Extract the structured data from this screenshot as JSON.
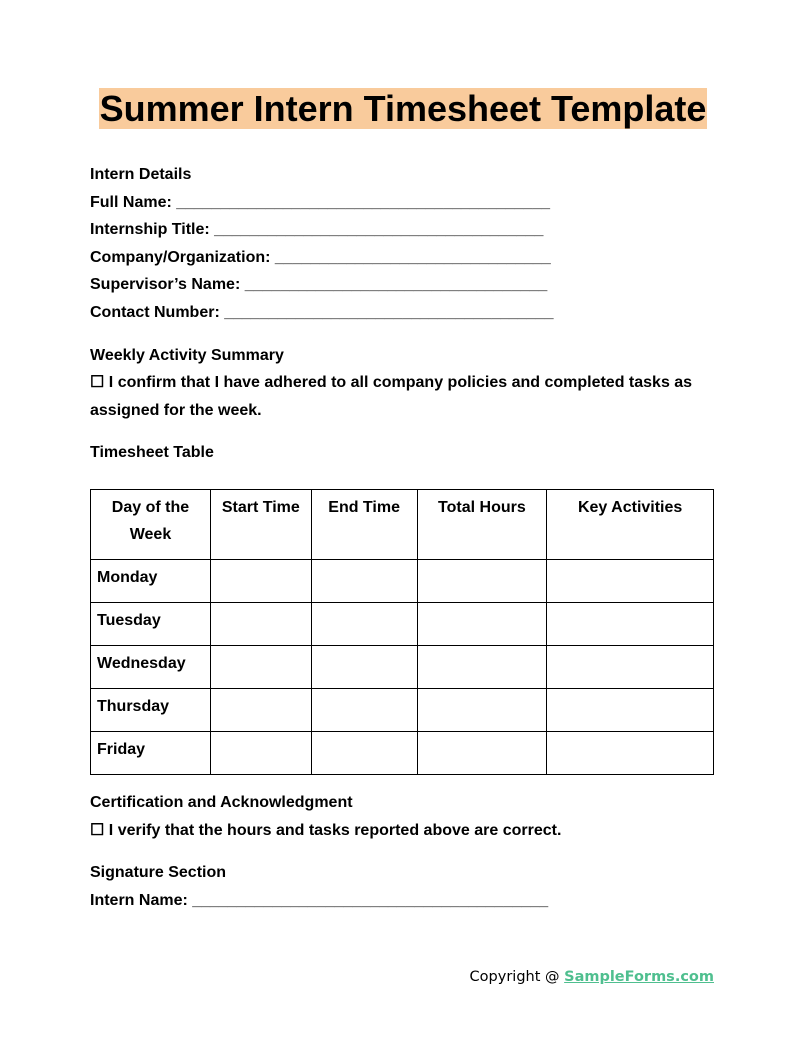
{
  "title": "Summer Intern Timesheet Template",
  "intern_details": {
    "heading": "Intern Details",
    "fields": [
      {
        "label": "Full Name:",
        "blank": "__________________________________________"
      },
      {
        "label": "Internship Title:",
        "blank": "_____________________________________"
      },
      {
        "label": "Company/Organization:",
        "blank": "_______________________________"
      },
      {
        "label": "Supervisor’s Name:",
        "blank": "__________________________________"
      },
      {
        "label": "Contact Number:",
        "blank": "_____________________________________"
      }
    ]
  },
  "weekly_summary": {
    "heading": "Weekly Activity Summary",
    "checkbox": "☐",
    "statement": "I confirm that I have adhered to all company policies and completed tasks as assigned for the week."
  },
  "timesheet": {
    "heading": "Timesheet Table",
    "columns": [
      "Day of the Week",
      "Start Time",
      "End Time",
      "Total Hours",
      "Key Activities"
    ],
    "rows": [
      "Monday",
      "Tuesday",
      "Wednesday",
      "Thursday",
      "Friday"
    ]
  },
  "certification": {
    "heading": "Certification and Acknowledgment",
    "checkbox": "☐",
    "statement": "I verify that the hours and tasks reported above are correct."
  },
  "signature": {
    "heading": "Signature Section",
    "label": "Intern Name:",
    "blank": "________________________________________"
  },
  "footer": {
    "prefix": "Copyright @ ",
    "link": "SampleForms.com",
    "link_color": "#4fbf8f"
  },
  "colors": {
    "title_highlight": "#f9cb9c"
  }
}
